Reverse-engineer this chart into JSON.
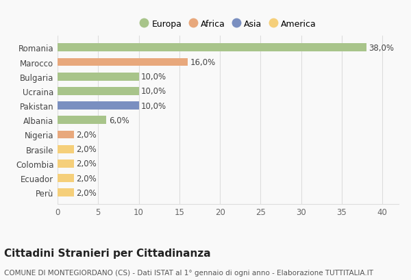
{
  "countries": [
    "Romania",
    "Marocco",
    "Bulgaria",
    "Ucraina",
    "Pakistan",
    "Albania",
    "Nigeria",
    "Brasile",
    "Colombia",
    "Ecuador",
    "Perù"
  ],
  "values": [
    38.0,
    16.0,
    10.0,
    10.0,
    10.0,
    6.0,
    2.0,
    2.0,
    2.0,
    2.0,
    2.0
  ],
  "labels": [
    "38,0%",
    "16,0%",
    "10,0%",
    "10,0%",
    "10,0%",
    "6,0%",
    "2,0%",
    "2,0%",
    "2,0%",
    "2,0%",
    "2,0%"
  ],
  "continents": [
    "Europa",
    "Africa",
    "Europa",
    "Europa",
    "Asia",
    "Europa",
    "Africa",
    "America",
    "America",
    "America",
    "America"
  ],
  "continent_colors": {
    "Europa": "#a8c48a",
    "Africa": "#e8a87c",
    "Asia": "#7a8fc0",
    "America": "#f5cf7a"
  },
  "legend_order": [
    "Europa",
    "Africa",
    "Asia",
    "America"
  ],
  "xlim": [
    0,
    42
  ],
  "xticks": [
    0,
    5,
    10,
    15,
    20,
    25,
    30,
    35,
    40
  ],
  "title": "Cittadini Stranieri per Cittadinanza",
  "subtitle": "COMUNE DI MONTEGIORDANO (CS) - Dati ISTAT al 1° gennaio di ogni anno - Elaborazione TUTTITALIA.IT",
  "background_color": "#f9f9f9",
  "grid_color": "#dddddd",
  "bar_height": 0.55,
  "label_fontsize": 8.5,
  "title_fontsize": 11,
  "subtitle_fontsize": 7.5
}
